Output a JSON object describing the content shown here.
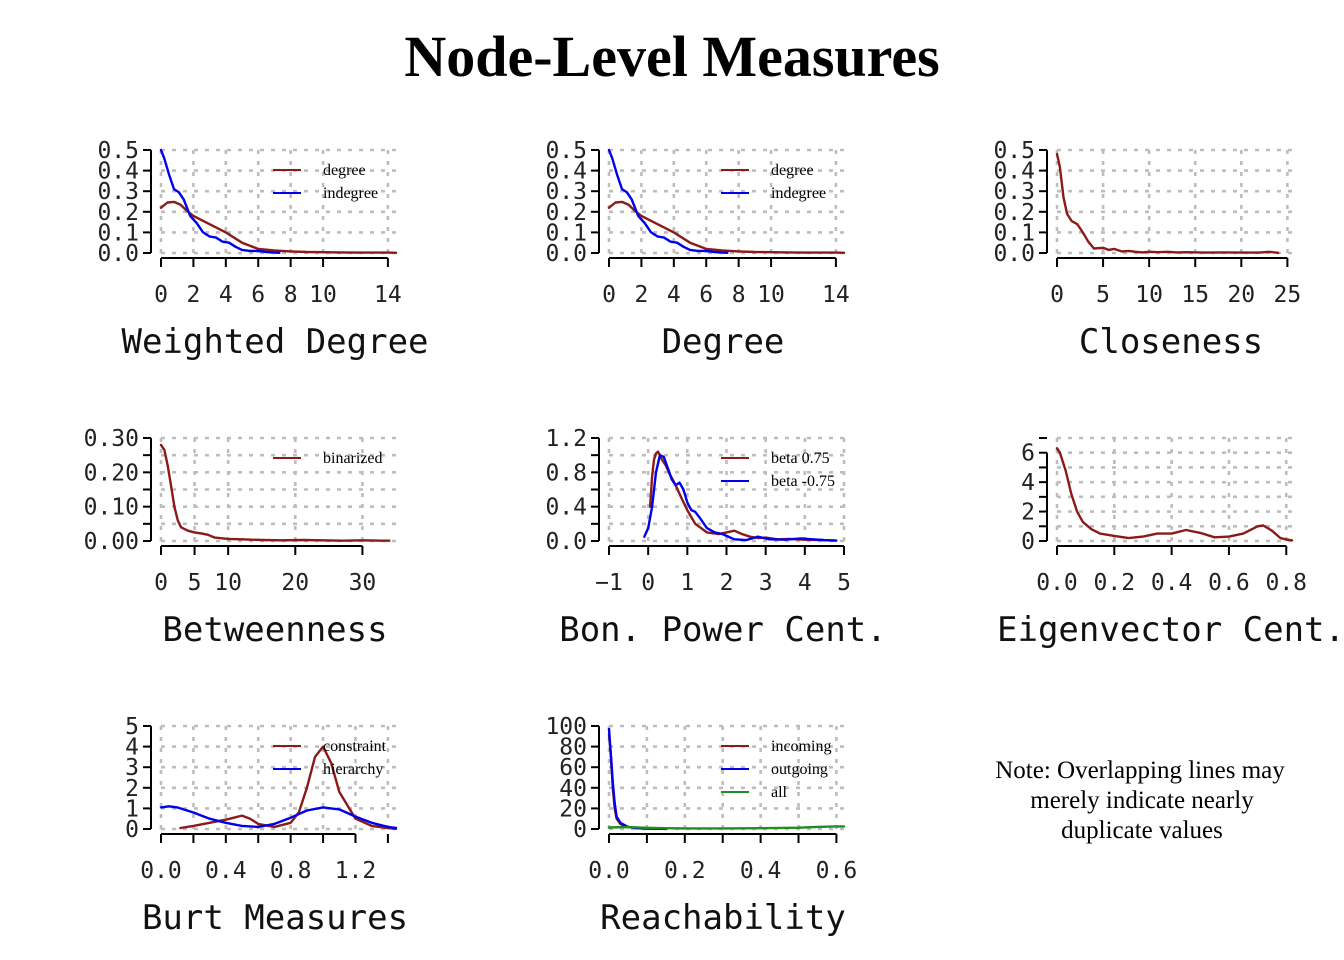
{
  "title": "Node-Level Measures",
  "note": [
    "Note: Overlapping lines may",
    "merely indicate nearly",
    "duplicate values"
  ],
  "colors": {
    "red": "#8b1a1a",
    "blue": "#0000ee",
    "green": "#228b22",
    "grid": "#bdbdbd"
  },
  "chart_data": [
    {
      "type": "line",
      "xlabel": "Weighted Degree",
      "xlim": [
        0,
        14.5
      ],
      "ylim": [
        0,
        0.5
      ],
      "xticks": [
        0,
        2,
        4,
        6,
        8,
        10,
        14
      ],
      "xtick_labels": [
        "0",
        "2",
        "4",
        "6",
        "8",
        "10",
        "14"
      ],
      "yticks": [
        0,
        0.1,
        0.2,
        0.3,
        0.4,
        0.5
      ],
      "ytick_labels": [
        "0.0",
        "0.1",
        "0.2",
        "0.3",
        "0.4",
        "0.5"
      ],
      "legend": "top-right",
      "grid": true,
      "series": [
        {
          "name": "degree",
          "color": "#8b1a1a",
          "x": [
            0,
            0.4,
            0.8,
            1.2,
            1.6,
            2,
            3,
            4,
            5,
            6,
            7,
            8,
            9,
            10,
            11,
            12,
            13,
            14,
            14.5
          ],
          "y": [
            0.22,
            0.245,
            0.248,
            0.235,
            0.205,
            0.18,
            0.14,
            0.1,
            0.05,
            0.02,
            0.012,
            0.008,
            0.005,
            0.004,
            0.003,
            0.002,
            0.002,
            0.002,
            0.001
          ]
        },
        {
          "name": "indegree",
          "color": "#0000ee",
          "x": [
            0,
            0.2,
            0.5,
            0.8,
            1.1,
            1.4,
            1.8,
            2.2,
            2.6,
            3,
            3.4,
            3.8,
            4.2,
            4.6,
            5,
            5.5,
            6,
            6.5,
            7,
            7.3
          ],
          "y": [
            0.5,
            0.46,
            0.38,
            0.31,
            0.295,
            0.26,
            0.18,
            0.145,
            0.1,
            0.08,
            0.075,
            0.055,
            0.05,
            0.03,
            0.015,
            0.01,
            0.01,
            0.005,
            0.002,
            0.001
          ]
        }
      ]
    },
    {
      "type": "line",
      "xlabel": "Degree",
      "xlim": [
        0,
        14.5
      ],
      "ylim": [
        0,
        0.5
      ],
      "xticks": [
        0,
        2,
        4,
        6,
        8,
        10,
        14
      ],
      "xtick_labels": [
        "0",
        "2",
        "4",
        "6",
        "8",
        "10",
        "14"
      ],
      "yticks": [
        0,
        0.1,
        0.2,
        0.3,
        0.4,
        0.5
      ],
      "ytick_labels": [
        "0.0",
        "0.1",
        "0.2",
        "0.3",
        "0.4",
        "0.5"
      ],
      "legend": "top-right",
      "grid": true,
      "series": [
        {
          "name": "degree",
          "color": "#8b1a1a",
          "x": [
            0,
            0.4,
            0.8,
            1.2,
            1.6,
            2,
            3,
            4,
            5,
            6,
            7,
            8,
            9,
            10,
            11,
            12,
            13,
            14,
            14.5
          ],
          "y": [
            0.22,
            0.245,
            0.248,
            0.235,
            0.205,
            0.18,
            0.14,
            0.1,
            0.05,
            0.02,
            0.012,
            0.008,
            0.005,
            0.004,
            0.003,
            0.002,
            0.002,
            0.002,
            0.001
          ]
        },
        {
          "name": "indegree",
          "color": "#0000ee",
          "x": [
            0,
            0.2,
            0.5,
            0.8,
            1.1,
            1.4,
            1.8,
            2.2,
            2.6,
            3,
            3.4,
            3.8,
            4.2,
            4.6,
            5,
            5.5,
            6,
            6.5,
            7,
            7.3
          ],
          "y": [
            0.5,
            0.46,
            0.38,
            0.31,
            0.295,
            0.26,
            0.18,
            0.145,
            0.1,
            0.08,
            0.075,
            0.055,
            0.05,
            0.03,
            0.015,
            0.01,
            0.01,
            0.005,
            0.002,
            0.001
          ]
        }
      ]
    },
    {
      "type": "line",
      "xlabel": "Closeness",
      "xlim": [
        0,
        25.5
      ],
      "ylim": [
        0,
        0.5
      ],
      "xticks": [
        0,
        5,
        10,
        15,
        20,
        25
      ],
      "xtick_labels": [
        "0",
        "5",
        "10",
        "15",
        "20",
        "25"
      ],
      "yticks": [
        0,
        0.1,
        0.2,
        0.3,
        0.4,
        0.5
      ],
      "ytick_labels": [
        "0.0",
        "0.1",
        "0.2",
        "0.3",
        "0.4",
        "0.5"
      ],
      "legend": "none",
      "grid": true,
      "series": [
        {
          "name": "",
          "color": "#8b1a1a",
          "x": [
            0,
            0.3,
            0.7,
            1.1,
            1.6,
            2.2,
            2.8,
            3.4,
            4,
            5,
            5.6,
            6.2,
            7,
            7.8,
            8.5,
            9.3,
            10,
            11,
            12,
            13,
            14,
            16,
            18,
            20,
            22,
            23,
            24
          ],
          "y": [
            0.48,
            0.42,
            0.27,
            0.19,
            0.155,
            0.14,
            0.1,
            0.055,
            0.022,
            0.025,
            0.015,
            0.02,
            0.008,
            0.01,
            0.006,
            0.003,
            0.006,
            0.004,
            0.006,
            0.003,
            0.004,
            0.002,
            0.003,
            0.002,
            0.002,
            0.006,
            0.001
          ]
        }
      ]
    },
    {
      "type": "line",
      "xlabel": "Betweenness",
      "xlim": [
        0,
        35
      ],
      "ylim": [
        0,
        0.3
      ],
      "xticks": [
        0,
        5,
        10,
        20,
        30
      ],
      "xtick_labels": [
        "0",
        "5",
        "10",
        "20",
        "30"
      ],
      "yticks": [
        0,
        0.1,
        0.2,
        0.3
      ],
      "ytick_labels": [
        "0.00",
        "0.10",
        "0.20",
        "0.30"
      ],
      "extra_yticks": [
        0.05,
        0.15,
        0.25
      ],
      "legend": "top-right",
      "grid": true,
      "series": [
        {
          "name": "binarized",
          "color": "#8b1a1a",
          "x": [
            0,
            0.5,
            1,
            1.5,
            2,
            2.5,
            3,
            4,
            5,
            6,
            7,
            8,
            10,
            12,
            15,
            18,
            21,
            24,
            27,
            30,
            33,
            34
          ],
          "y": [
            0.28,
            0.265,
            0.22,
            0.16,
            0.1,
            0.06,
            0.04,
            0.03,
            0.025,
            0.022,
            0.018,
            0.01,
            0.006,
            0.005,
            0.003,
            0.002,
            0.003,
            0.002,
            0.001,
            0.002,
            0.001,
            0.001
          ]
        }
      ]
    },
    {
      "type": "line",
      "xlabel": "Bon. Power Cent.",
      "xlim": [
        -1,
        5
      ],
      "ylim": [
        0,
        1.2
      ],
      "xticks": [
        -1,
        0,
        1,
        2,
        3,
        4,
        5
      ],
      "xtick_labels": [
        "−1",
        "0",
        "1",
        "2",
        "3",
        "4",
        "5"
      ],
      "yticks": [
        0,
        0.4,
        0.8,
        1.2
      ],
      "ytick_labels": [
        "0.0",
        "0.4",
        "0.8",
        "1.2"
      ],
      "extra_yticks": [
        0.2,
        0.6,
        1.0
      ],
      "legend": "top-right",
      "grid": true,
      "series": [
        {
          "name": "beta 0.75",
          "color": "#8b1a1a",
          "x": [
            0.05,
            0.1,
            0.15,
            0.2,
            0.25,
            0.3,
            0.35,
            0.45,
            0.55,
            0.7,
            0.85,
            1.0,
            1.2,
            1.5,
            1.8,
            2.0,
            2.2,
            2.4,
            2.6,
            2.8,
            3.0,
            3.3,
            3.6,
            4.0,
            4.4,
            4.8
          ],
          "y": [
            0.4,
            0.75,
            0.95,
            1.02,
            1.04,
            1.0,
            0.95,
            0.88,
            0.78,
            0.65,
            0.5,
            0.36,
            0.2,
            0.1,
            0.08,
            0.1,
            0.12,
            0.08,
            0.05,
            0.035,
            0.04,
            0.02,
            0.025,
            0.015,
            0.01,
            0.005
          ]
        },
        {
          "name": "beta -0.75",
          "color": "#0000ee",
          "x": [
            -0.1,
            0.0,
            0.1,
            0.2,
            0.3,
            0.4,
            0.5,
            0.6,
            0.7,
            0.8,
            0.9,
            1.0,
            1.1,
            1.2,
            1.35,
            1.5,
            1.7,
            1.9,
            2.2,
            2.5,
            2.8,
            3.1,
            3.5,
            3.9,
            4.2,
            4.5,
            4.8
          ],
          "y": [
            0.05,
            0.15,
            0.4,
            0.8,
            1.0,
            0.98,
            0.85,
            0.72,
            0.65,
            0.68,
            0.6,
            0.45,
            0.36,
            0.34,
            0.25,
            0.15,
            0.1,
            0.08,
            0.02,
            0.01,
            0.05,
            0.02,
            0.015,
            0.03,
            0.02,
            0.01,
            0.005
          ]
        }
      ]
    },
    {
      "type": "line",
      "xlabel": "Eigenvector Cent.",
      "xlim": [
        0,
        0.82
      ],
      "ylim": [
        0,
        7
      ],
      "xticks": [
        0,
        0.2,
        0.4,
        0.6,
        0.8
      ],
      "xtick_labels": [
        "0.0",
        "0.2",
        "0.4",
        "0.6",
        "0.8"
      ],
      "yticks": [
        0,
        2,
        4,
        6
      ],
      "ytick_labels": [
        "0",
        "2",
        "4",
        "6"
      ],
      "extra_yticks": [
        1,
        3,
        5,
        7
      ],
      "legend": "none",
      "grid": true,
      "series": [
        {
          "name": "",
          "color": "#8b1a1a",
          "x": [
            0,
            0.01,
            0.03,
            0.05,
            0.07,
            0.09,
            0.12,
            0.15,
            0.2,
            0.25,
            0.3,
            0.35,
            0.4,
            0.45,
            0.5,
            0.55,
            0.6,
            0.65,
            0.7,
            0.72,
            0.75,
            0.78,
            0.8,
            0.82
          ],
          "y": [
            6.3,
            6.0,
            4.8,
            3.2,
            2.0,
            1.3,
            0.8,
            0.5,
            0.35,
            0.2,
            0.3,
            0.5,
            0.5,
            0.75,
            0.55,
            0.25,
            0.3,
            0.5,
            1.0,
            1.05,
            0.7,
            0.2,
            0.1,
            0.05
          ]
        }
      ]
    },
    {
      "type": "line",
      "xlabel": "Burt Measures",
      "xlim": [
        0,
        1.45
      ],
      "ylim": [
        0,
        5
      ],
      "xticks": [
        0,
        0.4,
        0.8,
        1.2
      ],
      "xtick_labels": [
        "0.0",
        "0.4",
        "0.8",
        "1.2"
      ],
      "extra_xticks": [
        0.2,
        0.6,
        1.0,
        1.4
      ],
      "yticks": [
        0,
        1,
        2,
        3,
        4,
        5
      ],
      "ytick_labels": [
        "0",
        "1",
        "2",
        "3",
        "4",
        "5"
      ],
      "legend": "top-right",
      "grid": true,
      "series": [
        {
          "name": "constraint",
          "color": "#8b1a1a",
          "x": [
            0.12,
            0.2,
            0.3,
            0.4,
            0.45,
            0.5,
            0.55,
            0.6,
            0.7,
            0.8,
            0.85,
            0.9,
            0.95,
            1.0,
            1.05,
            1.1,
            1.2,
            1.3,
            1.4,
            1.45
          ],
          "y": [
            0.05,
            0.15,
            0.3,
            0.45,
            0.55,
            0.65,
            0.5,
            0.25,
            0.1,
            0.3,
            0.8,
            2.0,
            3.5,
            4.0,
            3.2,
            1.8,
            0.5,
            0.15,
            0.05,
            0.01
          ]
        },
        {
          "name": "hierarchy",
          "color": "#0000ee",
          "x": [
            0,
            0.05,
            0.1,
            0.2,
            0.3,
            0.4,
            0.5,
            0.6,
            0.7,
            0.8,
            0.9,
            1.0,
            1.1,
            1.2,
            1.3,
            1.4,
            1.45
          ],
          "y": [
            1.05,
            1.1,
            1.05,
            0.8,
            0.5,
            0.3,
            0.15,
            0.1,
            0.25,
            0.55,
            0.9,
            1.05,
            0.95,
            0.6,
            0.3,
            0.1,
            0.05
          ]
        }
      ]
    },
    {
      "type": "line",
      "xlabel": "Reachability",
      "xlim": [
        0,
        0.62
      ],
      "ylim": [
        0,
        100
      ],
      "xticks": [
        0,
        0.2,
        0.4,
        0.6
      ],
      "xtick_labels": [
        "0.0",
        "0.2",
        "0.4",
        "0.6"
      ],
      "extra_xticks": [
        0.1,
        0.3,
        0.5
      ],
      "yticks": [
        0,
        20,
        40,
        60,
        80,
        100
      ],
      "ytick_labels": [
        "0",
        "20",
        "40",
        "60",
        "80",
        "100"
      ],
      "legend": "top-right",
      "grid": true,
      "series": [
        {
          "name": "incoming",
          "color": "#8b1a1a",
          "x": [
            0,
            0.005,
            0.01,
            0.015,
            0.02,
            0.03,
            0.04,
            0.05,
            0.07,
            0.1,
            0.15
          ],
          "y": [
            92,
            70,
            40,
            20,
            10,
            5,
            3,
            2,
            1,
            0.5,
            0.2
          ]
        },
        {
          "name": "outgoing",
          "color": "#0000ee",
          "x": [
            0,
            0.005,
            0.01,
            0.015,
            0.02,
            0.03,
            0.04,
            0.05,
            0.07,
            0.1,
            0.15
          ],
          "y": [
            97,
            72,
            45,
            25,
            12,
            6,
            4,
            2,
            1,
            0.5,
            0.2
          ]
        },
        {
          "name": "all",
          "color": "#228b22",
          "x": [
            0,
            0.05,
            0.1,
            0.15,
            0.2,
            0.3,
            0.4,
            0.5,
            0.55,
            0.6,
            0.62
          ],
          "y": [
            1.5,
            1.8,
            1.2,
            0.8,
            0.6,
            0.6,
            0.8,
            1.3,
            2.0,
            2.5,
            2.5
          ]
        }
      ]
    }
  ]
}
